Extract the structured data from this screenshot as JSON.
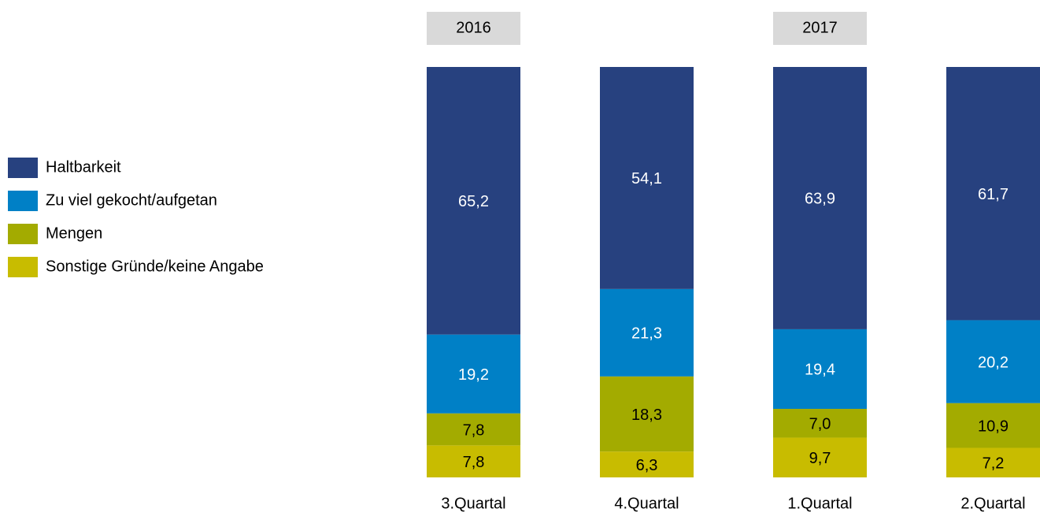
{
  "chart_data": {
    "type": "stacked_bar",
    "categories": [
      "3.Quartal",
      "4.Quartal",
      "1.Quartal",
      "2.Quartal"
    ],
    "group_labels": [
      "2016",
      null,
      "2017",
      null
    ],
    "series": [
      {
        "name": "Haltbarkeit",
        "color": "#27417f",
        "values": [
          65.2,
          54.1,
          63.9,
          61.7
        ],
        "value_labels": [
          "65,2",
          "54,1",
          "63,9",
          "61,7"
        ]
      },
      {
        "name": "Zu viel gekocht/aufgetan",
        "color": "#0080c6",
        "values": [
          19.2,
          21.3,
          19.4,
          20.2
        ],
        "value_labels": [
          "19,2",
          "21,3",
          "19,4",
          "20,2"
        ]
      },
      {
        "name": "Mengen",
        "color": "#a3ab00",
        "values": [
          7.8,
          18.3,
          7.0,
          10.9
        ],
        "value_labels": [
          "7,8",
          "18,3",
          "7,0",
          "10,9"
        ]
      },
      {
        "name": "Sonstige Gründe/keine Angabe",
        "color": "#c8bc00",
        "values": [
          7.8,
          6.3,
          9.7,
          7.2
        ],
        "value_labels": [
          "7,8",
          "6,3",
          "9,7",
          "7,2"
        ]
      }
    ],
    "ylim": [
      0,
      100
    ]
  }
}
